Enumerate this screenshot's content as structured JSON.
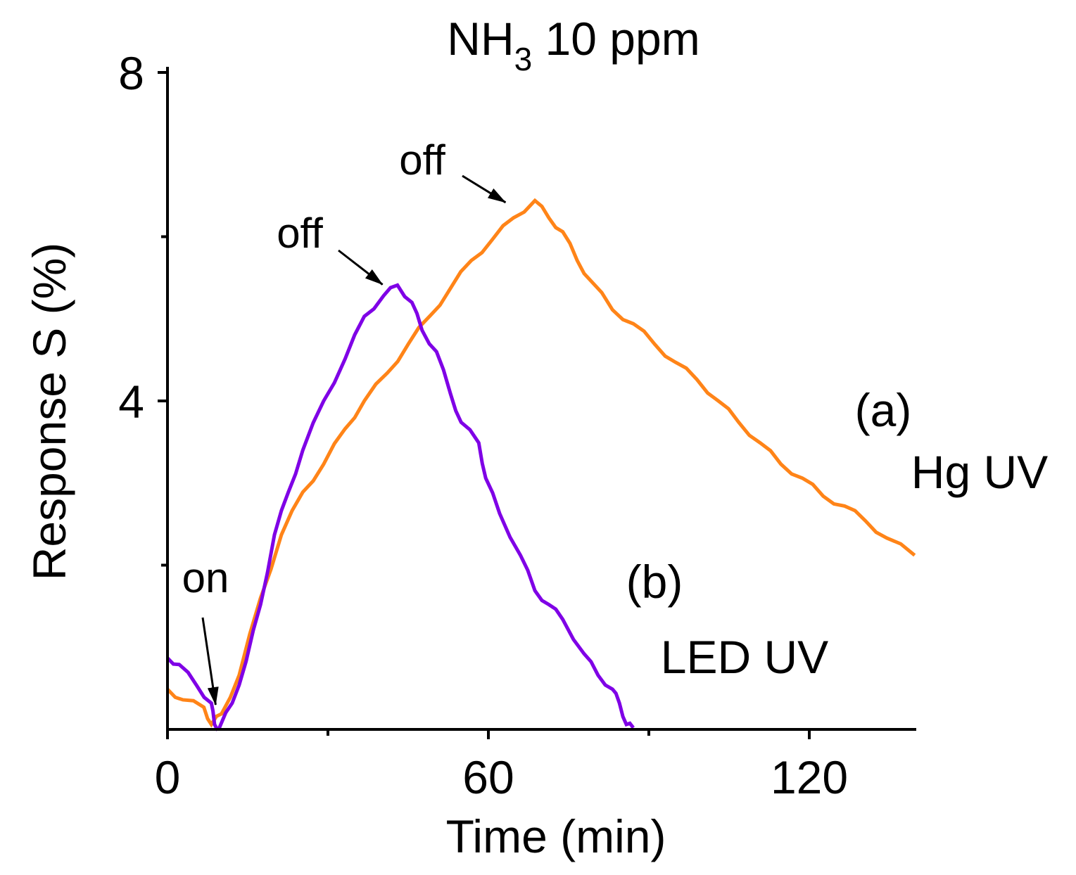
{
  "chart_data": {
    "type": "line",
    "title": "NH3 10 ppm",
    "title_parts": {
      "main": "NH",
      "sub": "3",
      "rest": " 10 ppm"
    },
    "xlabel": "Time (min)",
    "ylabel": "Response S (%)",
    "xlim": [
      0,
      140
    ],
    "ylim": [
      0,
      8
    ],
    "x_ticks": [
      0,
      60,
      120
    ],
    "x_minor_ticks": [
      30,
      90
    ],
    "y_ticks": [
      4,
      8
    ],
    "y_minor_ticks": [
      2,
      6
    ],
    "x_tick_labels": [
      "0",
      "60",
      "120"
    ],
    "y_tick_labels": [
      "4",
      "8"
    ],
    "grid": false,
    "series": [
      {
        "name": "Hg UV",
        "tag": "(a)",
        "color": "#FF8418",
        "x": [
          0,
          2.9,
          6.8,
          8.2,
          10.1,
          13.4,
          17.4,
          21.3,
          25.3,
          29.2,
          33.2,
          36.8,
          41.1,
          45,
          49,
          52.9,
          56.8,
          60.8,
          64.7,
          68.7,
          71.3,
          73.9,
          76.6,
          79.2,
          83.2,
          87.1,
          91.1,
          95,
          99,
          103,
          106.8,
          110.8,
          114.7,
          118.7,
          122.6,
          126.6,
          130.5,
          134.5,
          139.7
        ],
        "y": [
          0.49,
          0.36,
          0.27,
          0.06,
          0.19,
          0.66,
          1.6,
          2.37,
          2.89,
          3.23,
          3.66,
          4.0,
          4.34,
          4.69,
          5.03,
          5.37,
          5.71,
          5.97,
          6.23,
          6.44,
          6.23,
          6.06,
          5.71,
          5.46,
          5.11,
          4.94,
          4.69,
          4.47,
          4.26,
          4.0,
          3.74,
          3.49,
          3.23,
          3.06,
          2.84,
          2.72,
          2.54,
          2.33,
          2.12
        ]
      },
      {
        "name": "LED UV",
        "tag": "(b)",
        "color": "#7F00E6",
        "x": [
          0,
          2.2,
          5.5,
          8.2,
          8.8,
          9.7,
          12.1,
          14.7,
          17.4,
          20,
          22.6,
          25.3,
          29.2,
          33.2,
          36.8,
          40.4,
          43,
          45.7,
          47.6,
          50.3,
          52.9,
          54.9,
          58.2,
          59.5,
          62.1,
          66,
          68.7,
          71.3,
          73.9,
          77.9,
          80.5,
          83.2,
          84.5,
          85.8,
          87.1
        ],
        "y": [
          0.87,
          0.79,
          0.53,
          0.32,
          0.06,
          0.02,
          0.32,
          0.83,
          1.52,
          2.37,
          2.89,
          3.4,
          4.0,
          4.51,
          5.03,
          5.28,
          5.41,
          5.2,
          4.86,
          4.6,
          4.09,
          3.74,
          3.49,
          3.06,
          2.63,
          2.12,
          1.69,
          1.52,
          1.34,
          0.92,
          0.66,
          0.49,
          0.32,
          0.06,
          0.02
        ]
      }
    ],
    "annotations": [
      {
        "text": "on",
        "x": 9,
        "y": 0.3
      },
      {
        "text": "off",
        "x": 41,
        "y": 5.4
      },
      {
        "text": "off",
        "x": 64,
        "y": 6.4
      }
    ]
  }
}
